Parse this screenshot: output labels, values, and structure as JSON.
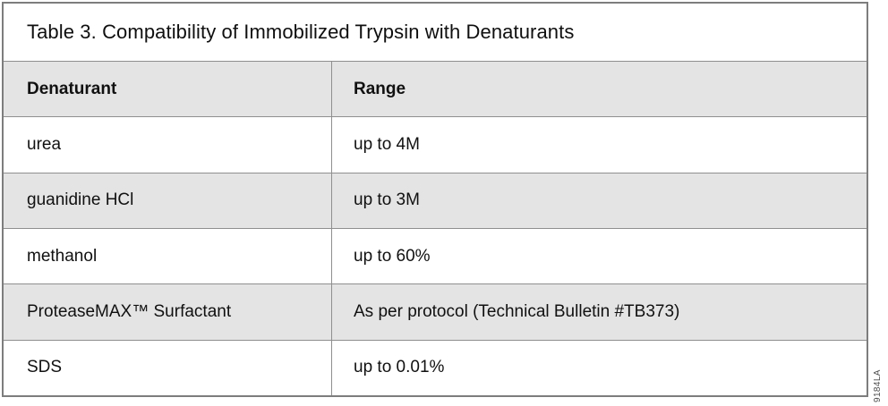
{
  "figure": {
    "title": "Table 3. Compatibility of Immobilized Trypsin with Denaturants",
    "columns": {
      "denaturant": "Denaturant",
      "range": "Range"
    },
    "rows": [
      {
        "denaturant": "urea",
        "range": "up to 4M"
      },
      {
        "denaturant": "guanidine HCl",
        "range": "up to 3M"
      },
      {
        "denaturant": "methanol",
        "range": "up to 60%"
      },
      {
        "denaturant": "ProteaseMAX™ Surfactant",
        "range": "As per protocol (Technical Bulletin #TB373)"
      },
      {
        "denaturant": "SDS",
        "range": "up to 0.01%"
      }
    ],
    "code": "9184LA"
  },
  "colors": {
    "row_shade": "#e4e4e4",
    "border": "#8f8f8f",
    "outer_border": "#7d7d7d",
    "text": "#111111",
    "background": "#ffffff"
  }
}
